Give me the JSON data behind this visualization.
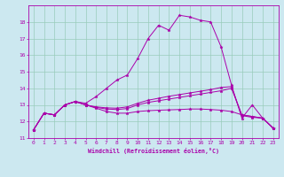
{
  "xlabel": "Windchill (Refroidissement éolien,°C)",
  "background_color": "#cce8f0",
  "line_color": "#aa00aa",
  "grid_color": "#99ccbb",
  "xlim": [
    -0.5,
    23.5
  ],
  "ylim": [
    11,
    19
  ],
  "yticks": [
    11,
    12,
    13,
    14,
    15,
    16,
    17,
    18
  ],
  "xticks": [
    0,
    1,
    2,
    3,
    4,
    5,
    6,
    7,
    8,
    9,
    10,
    11,
    12,
    13,
    14,
    15,
    16,
    17,
    18,
    19,
    20,
    21,
    22,
    23
  ],
  "series": [
    [
      11.5,
      12.5,
      12.4,
      13.0,
      13.2,
      13.1,
      13.5,
      14.0,
      14.5,
      14.8,
      15.8,
      17.0,
      17.8,
      17.5,
      18.4,
      18.3,
      18.1,
      18.0,
      16.5,
      14.2,
      12.2,
      13.0,
      12.2,
      11.6
    ],
    [
      11.5,
      12.5,
      12.4,
      13.0,
      13.2,
      13.0,
      12.8,
      12.6,
      12.5,
      12.5,
      12.6,
      12.65,
      12.68,
      12.7,
      12.72,
      12.75,
      12.75,
      12.72,
      12.68,
      12.6,
      12.4,
      12.3,
      12.2,
      11.6
    ],
    [
      11.5,
      12.5,
      12.4,
      13.0,
      13.2,
      13.0,
      12.85,
      12.75,
      12.72,
      12.78,
      13.0,
      13.15,
      13.25,
      13.35,
      13.45,
      13.55,
      13.65,
      13.75,
      13.85,
      14.0,
      12.4,
      12.3,
      12.2,
      11.6
    ],
    [
      11.5,
      12.5,
      12.4,
      13.0,
      13.2,
      13.0,
      12.88,
      12.82,
      12.8,
      12.88,
      13.1,
      13.28,
      13.4,
      13.52,
      13.62,
      13.72,
      13.82,
      13.92,
      14.05,
      14.1,
      12.35,
      12.25,
      12.2,
      11.6
    ]
  ]
}
